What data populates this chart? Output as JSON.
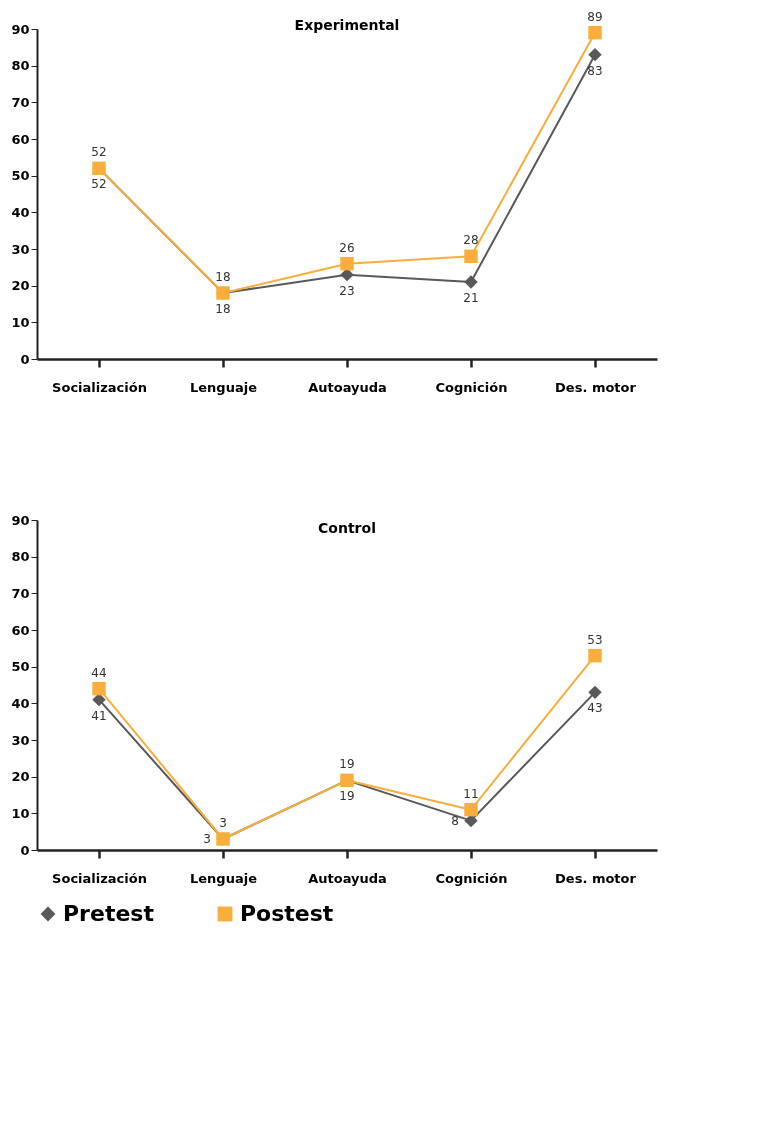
{
  "chart_data": [
    {
      "type": "line",
      "title": "Experimental",
      "categories": [
        "Socialización",
        "Lenguaje",
        "Autoayuda",
        "Cognición",
        "Des. motor"
      ],
      "ylim": [
        0,
        90
      ],
      "yticks": [
        0,
        10,
        20,
        30,
        40,
        50,
        60,
        70,
        80,
        90
      ],
      "grid": false,
      "line_style": "solid",
      "data_labels": true,
      "series": [
        {
          "color": "#595959",
          "marker": "diamond",
          "values": [
            52,
            18,
            23,
            21,
            83
          ]
        },
        {
          "color": "#f9ae3b",
          "marker": "square",
          "values": [
            52,
            18,
            26,
            28,
            89
          ]
        }
      ]
    },
    {
      "type": "line",
      "title": "Control",
      "categories": [
        "Socialización",
        "Lenguaje",
        "Autoayuda",
        "Cognición",
        "Des. motor"
      ],
      "ylim": [
        0,
        90
      ],
      "yticks": [
        0,
        10,
        20,
        30,
        40,
        50,
        60,
        70,
        80,
        90
      ],
      "grid": false,
      "legend": "bottom",
      "line_style": "solid",
      "data_labels": true,
      "series": [
        {
          "name": "Pretest",
          "color": "#595959",
          "marker": "diamond",
          "values": [
            41,
            3,
            19,
            8,
            43
          ]
        },
        {
          "name": "Postest",
          "color": "#f9ae3b",
          "marker": "square",
          "values": [
            44,
            3,
            19,
            11,
            53
          ]
        }
      ]
    }
  ]
}
